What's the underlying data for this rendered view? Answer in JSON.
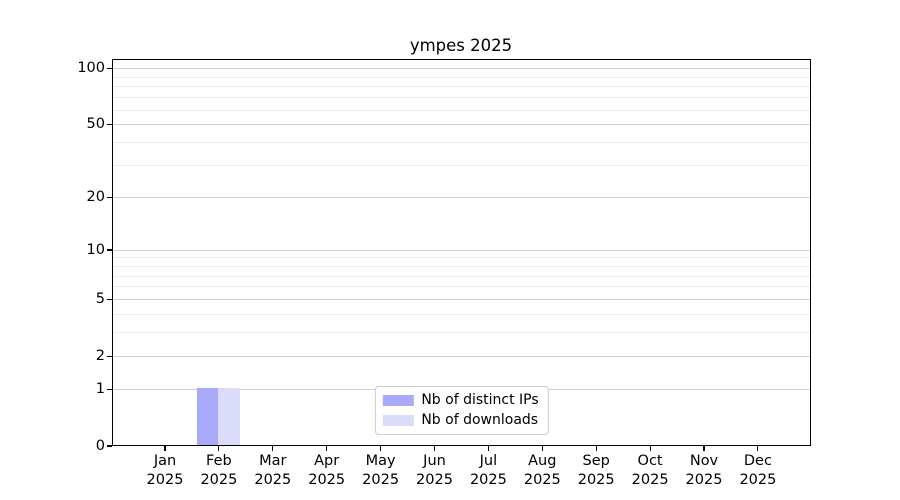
{
  "chart_data": {
    "type": "bar",
    "title": "ympes 2025",
    "categories": [
      "Jan",
      "Feb",
      "Mar",
      "Apr",
      "May",
      "Jun",
      "Jul",
      "Aug",
      "Sep",
      "Oct",
      "Nov",
      "Dec"
    ],
    "category_year": "2025",
    "series": [
      {
        "name": "Nb of distinct IPs",
        "color": "#a9a9fa",
        "values": [
          0,
          1,
          0,
          0,
          0,
          0,
          0,
          0,
          0,
          0,
          0,
          0
        ]
      },
      {
        "name": "Nb of downloads",
        "color": "#dbdbfa",
        "values": [
          0,
          1,
          0,
          0,
          0,
          0,
          0,
          0,
          0,
          0,
          0,
          0
        ]
      }
    ],
    "y_axis": {
      "scale": "log1p",
      "major_ticks": [
        0,
        1,
        2,
        5,
        10,
        20,
        50,
        100
      ],
      "minor_ticks": [
        3,
        4,
        6,
        7,
        8,
        9,
        30,
        40,
        60,
        70,
        80,
        90
      ],
      "ylim": [
        0,
        113
      ]
    },
    "grid": {
      "major_color": "#d2d2d2",
      "minor_color": "#ececec"
    },
    "legend": {
      "position": "lower center",
      "entries": [
        "Nb of distinct IPs",
        "Nb of downloads"
      ]
    },
    "colors": {
      "axis": "#000000",
      "background": "#ffffff",
      "text": "#000000"
    }
  }
}
